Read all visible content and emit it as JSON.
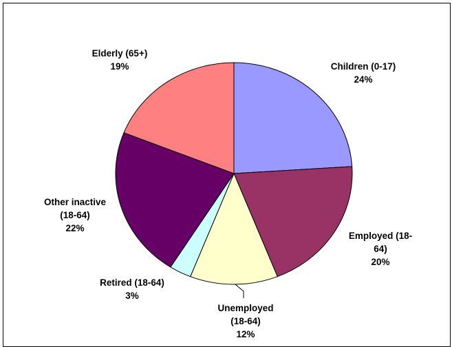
{
  "chart_data": {
    "type": "pie",
    "title": "",
    "start_angle_deg": 0,
    "direction": "clockwise",
    "slices": [
      {
        "name": "Children (0-17)",
        "value": 24,
        "value_label": "24%",
        "label_lines": [
          "Children (0-17)",
          "24%"
        ],
        "color": "#9999FF"
      },
      {
        "name": "Employed (18-64)",
        "value": 20,
        "value_label": "20%",
        "label_lines": [
          "Employed (18-",
          "64)",
          "20%"
        ],
        "color": "#993366"
      },
      {
        "name": "Unemployed (18-64)",
        "value": 12,
        "value_label": "12%",
        "label_lines": [
          "Unemployed",
          "(18-64)",
          "12%"
        ],
        "color": "#FFFFCC"
      },
      {
        "name": "Retired (18-64)",
        "value": 3,
        "value_label": "3%",
        "label_lines": [
          "Retired (18-64)",
          "3%"
        ],
        "color": "#CCFFFF"
      },
      {
        "name": "Other inactive (18-64)",
        "value": 22,
        "value_label": "22%",
        "label_lines": [
          "Other inactive",
          "(18-64)",
          "22%"
        ],
        "color": "#660066"
      },
      {
        "name": "Elderly (65+)",
        "value": 19,
        "value_label": "19%",
        "label_lines": [
          "Elderly (65+)",
          "19%"
        ],
        "color": "#FF8080"
      }
    ]
  }
}
